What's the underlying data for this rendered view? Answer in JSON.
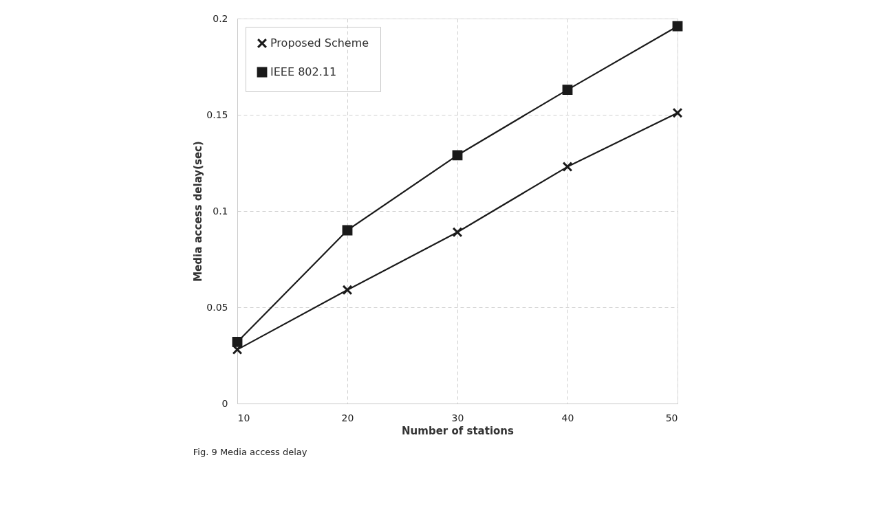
{
  "chart_data": {
    "type": "line",
    "xlabel": "Number of stations",
    "ylabel": "Media access delay(sec)",
    "x": [
      10,
      20,
      30,
      40,
      50
    ],
    "series": [
      {
        "name": "Proposed Scheme",
        "color": "#1a1a1a",
        "marker": "cross",
        "values": [
          0.028,
          0.059,
          0.089,
          0.123,
          0.151
        ]
      },
      {
        "name": "IEEE 802.11",
        "color": "#1a1a1a",
        "marker": "square",
        "values": [
          0.032,
          0.09,
          0.129,
          0.163,
          0.196
        ]
      }
    ],
    "xlim": [
      10,
      50
    ],
    "xticks": [
      10,
      20,
      30,
      40,
      50
    ],
    "ylim": [
      0,
      0.2
    ],
    "yticks": [
      0,
      0.05,
      0.1,
      0.15,
      0.2
    ],
    "grid": true,
    "legend": "top left",
    "line_style": "solid",
    "annotations": [
      "Fig. 9 Media access delay"
    ]
  }
}
